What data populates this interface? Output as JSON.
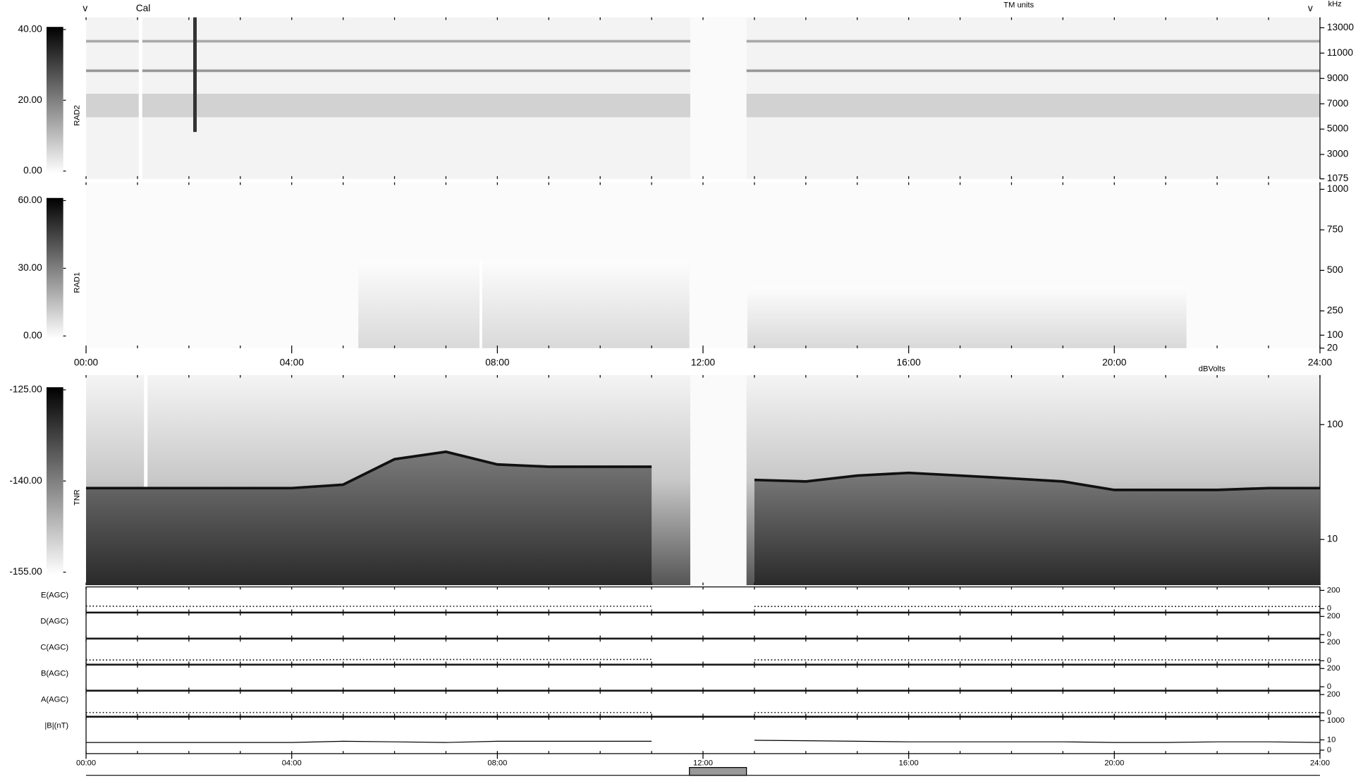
{
  "annotations": [
    "v",
    "Cal",
    "v"
  ],
  "chart_data": [
    {
      "type": "spectrogram",
      "label": "RAD2",
      "unit_label": "TM units",
      "freq_unit": "kHz",
      "xlim": [
        0,
        24
      ],
      "ylim": [
        1075,
        13820
      ],
      "yticks": [
        13000,
        11000,
        9000,
        7000,
        5000,
        3000,
        1075
      ],
      "colorbar": {
        "lim": [
          0,
          40
        ],
        "ticks": [
          {
            "value": 40,
            "label": "40.00"
          },
          {
            "value": 20,
            "label": "20.00"
          },
          {
            "value": 0,
            "label": "0.00"
          }
        ]
      }
    },
    {
      "type": "spectrogram",
      "label": "RAD1",
      "xlim": [
        0,
        24
      ],
      "ylim": [
        20,
        1043
      ],
      "yticks": [
        1000,
        750,
        500,
        250,
        100,
        20
      ],
      "xticks": [
        {
          "value": 0,
          "label": "00:00"
        },
        {
          "value": 4,
          "label": "04:00"
        },
        {
          "value": 8,
          "label": "08:00"
        },
        {
          "value": 12,
          "label": "12:00"
        },
        {
          "value": 16,
          "label": "16:00"
        },
        {
          "value": 20,
          "label": "20:00"
        },
        {
          "value": 24,
          "label": "24:00"
        }
      ],
      "colorbar": {
        "lim": [
          0,
          60
        ],
        "ticks": [
          {
            "value": 60,
            "label": "60.00"
          },
          {
            "value": 30,
            "label": "30.00"
          },
          {
            "value": 0,
            "label": "0.00"
          }
        ]
      }
    },
    {
      "type": "spectrogram",
      "label": "TNR",
      "unit_label": "dBVolts",
      "yscale": "log",
      "xlim": [
        0,
        24
      ],
      "ylim": [
        4,
        270
      ],
      "yticks": [
        100,
        10
      ],
      "x": [
        0,
        1,
        2,
        3,
        4,
        5,
        6,
        7,
        8,
        9,
        10,
        11,
        12,
        13,
        14,
        15,
        16,
        17,
        18,
        19,
        20,
        21,
        22,
        23,
        24
      ],
      "values": [
        28,
        28,
        28,
        28,
        28,
        30,
        50,
        58,
        45,
        43,
        43,
        43,
        null,
        33,
        32,
        36,
        38,
        36,
        34,
        32,
        27,
        27,
        27,
        28,
        28
      ],
      "colorbar": {
        "lim": [
          -155,
          -125
        ],
        "ticks": [
          {
            "value": -125,
            "label": "-125.00"
          },
          {
            "value": -140,
            "label": "-140.00"
          },
          {
            "value": -155,
            "label": "-155.00"
          }
        ]
      }
    },
    {
      "type": "line",
      "label": "E(AGC)",
      "xlim": [
        0,
        24
      ],
      "ylim": [
        0,
        200
      ],
      "yticks": [
        200,
        0
      ],
      "style": "dotted",
      "x": [
        0,
        1,
        2,
        3,
        4,
        5,
        6,
        7,
        8,
        9,
        10,
        11,
        12,
        13,
        14,
        15,
        16,
        17,
        18,
        19,
        20,
        21,
        22,
        23,
        24
      ],
      "values": [
        28,
        25,
        25,
        25,
        25,
        26,
        26,
        26,
        26,
        26,
        26,
        26,
        null,
        24,
        24,
        24,
        24,
        24,
        24,
        24,
        24,
        24,
        24,
        24,
        24
      ]
    },
    {
      "type": "line",
      "label": "D(AGC)",
      "xlim": [
        0,
        24
      ],
      "ylim": [
        0,
        200
      ],
      "yticks": [
        200,
        0
      ]
    },
    {
      "type": "line",
      "label": "C(AGC)",
      "xlim": [
        0,
        24
      ],
      "ylim": [
        0,
        200
      ],
      "yticks": [
        200,
        0
      ],
      "style": "dotted",
      "x": [
        0,
        1,
        2,
        3,
        4,
        5,
        6,
        7,
        8,
        9,
        10,
        11,
        12,
        13,
        14,
        15,
        16,
        17,
        18,
        19,
        20,
        21,
        22,
        23,
        24
      ],
      "values": [
        8,
        8,
        8,
        8,
        8,
        12,
        13,
        13,
        13,
        13,
        13,
        14,
        null,
        9,
        9,
        9,
        9,
        9,
        9,
        9,
        9,
        9,
        9,
        9,
        9
      ]
    },
    {
      "type": "line",
      "label": "B(AGC)",
      "xlim": [
        0,
        24
      ],
      "ylim": [
        0,
        200
      ],
      "yticks": [
        200,
        0
      ]
    },
    {
      "type": "line",
      "label": "A(AGC)",
      "xlim": [
        0,
        24
      ],
      "ylim": [
        0,
        200
      ],
      "yticks": [
        200,
        0
      ],
      "style": "dotted",
      "x": [
        0,
        1,
        2,
        3,
        4,
        5,
        6,
        7,
        8,
        9,
        10,
        11,
        12,
        13,
        14,
        15,
        16,
        17,
        18,
        19,
        20,
        21,
        22,
        23,
        24
      ],
      "values": [
        3,
        3,
        3,
        3,
        4,
        3,
        3,
        3,
        3,
        3,
        3,
        3,
        null,
        3,
        3,
        3,
        3,
        3,
        3,
        3,
        4,
        3,
        3,
        3,
        3
      ]
    },
    {
      "type": "line",
      "label": "|B|(nT)",
      "yscale": "symlog",
      "xlim": [
        0,
        24
      ],
      "ylim": [
        0,
        1000
      ],
      "yticks": [
        1000,
        10,
        0
      ],
      "style": "solid",
      "x": [
        0,
        1,
        2,
        3,
        4,
        5,
        6,
        7,
        8,
        9,
        10,
        11,
        12,
        13,
        14,
        15,
        16,
        17,
        18,
        19,
        20,
        21,
        22,
        23,
        24
      ],
      "values": [
        5,
        5,
        5,
        5,
        5,
        7,
        6,
        5,
        7,
        7,
        7,
        7,
        null,
        9,
        8,
        7,
        6,
        6,
        6,
        6,
        5,
        5,
        6,
        6,
        5
      ],
      "xticks": [
        {
          "value": 0,
          "label": "00:00"
        },
        {
          "value": 4,
          "label": "04:00"
        },
        {
          "value": 8,
          "label": "08:00"
        },
        {
          "value": 12,
          "label": "12:00"
        },
        {
          "value": 16,
          "label": "16:00"
        },
        {
          "value": 20,
          "label": "20:00"
        },
        {
          "value": 24,
          "label": "24:00"
        }
      ]
    }
  ]
}
